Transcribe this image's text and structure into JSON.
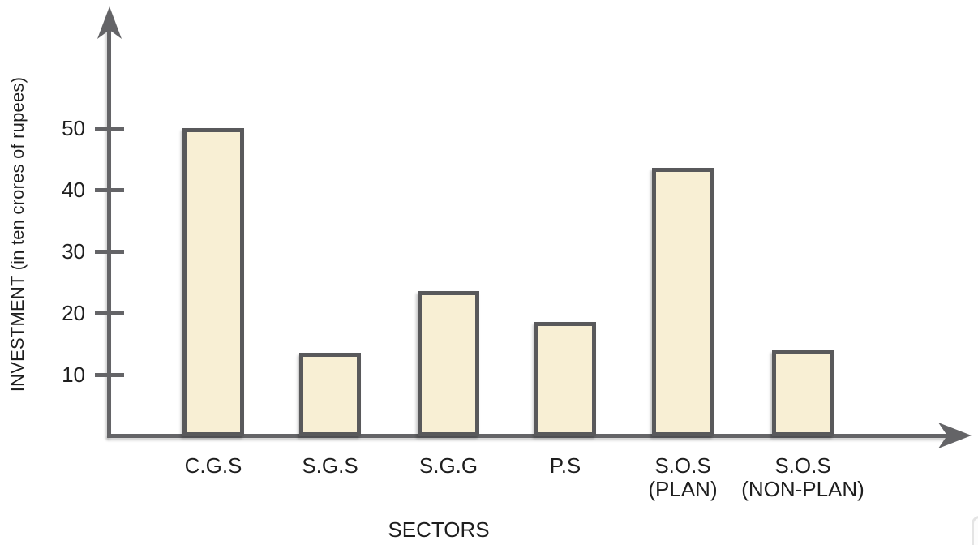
{
  "page": {
    "background": "#ffffff"
  },
  "chart_data": {
    "type": "bar",
    "title": "",
    "categories": [
      "C.G.S",
      "S.G.S",
      "S.G.G",
      "P.S",
      "S.O.S\n(PLAN)",
      "S.O.S\n(NON-PLAN)"
    ],
    "values": [
      50,
      13.5,
      23.5,
      18.5,
      43.5,
      14
    ],
    "xlabel": "SECTORS",
    "ylabel": "INVESTMENT (in ten crores of rupees)",
    "y_ticks": [
      10,
      20,
      30,
      40,
      50
    ],
    "ylim": [
      0,
      57
    ],
    "grid": false,
    "legend": "none",
    "colors": {
      "bar_fill": "#F8EFD4",
      "bar_stroke": "#59595B",
      "axis": "#646467",
      "text": "#1E1E1E"
    }
  }
}
